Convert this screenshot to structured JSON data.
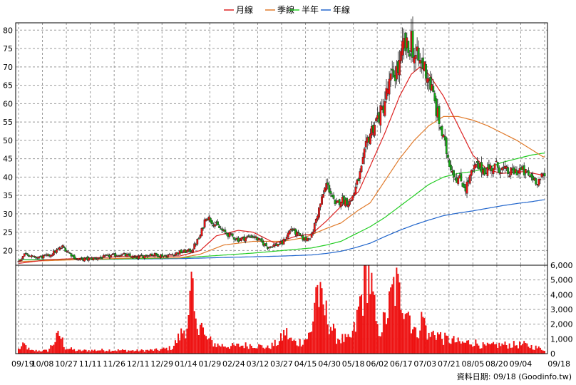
{
  "chart_data": {
    "type": "candlestick",
    "legend": [
      {
        "name": "月線",
        "color": "#dd2222"
      },
      {
        "name": "季線",
        "color": "#e07a2a"
      },
      {
        "name": "半年",
        "color": "#22cc22"
      },
      {
        "name": "年線",
        "color": "#2266cc"
      }
    ],
    "price_axis": {
      "ticks": [
        20,
        25,
        30,
        35,
        40,
        45,
        50,
        55,
        60,
        65,
        70,
        75,
        80
      ],
      "range": [
        16,
        82
      ],
      "labels": [
        "20",
        "25",
        "30",
        "35",
        "40",
        "45",
        "50",
        "55",
        "60",
        "65",
        "70",
        "75",
        "80"
      ]
    },
    "volume_axis": {
      "ticks": [
        0,
        1000,
        2000,
        3000,
        4000,
        5000,
        6000
      ],
      "range": [
        0,
        6000
      ],
      "labels": [
        "0",
        "1,000",
        "2,000",
        "3,000",
        "4,000",
        "5,000",
        "6,000"
      ]
    },
    "x_labels": [
      "09/19",
      "10/08",
      "10/27",
      "11/11",
      "11/26",
      "12/11",
      "12/29",
      "01/14",
      "01/29",
      "02/24",
      "03/12",
      "03/27",
      "04/15",
      "04/30",
      "05/18",
      "06/02",
      "06/17",
      "07/03",
      "07/21",
      "08/05",
      "08/20",
      "09/04",
      "09/18"
    ],
    "colors": {
      "up": "#ee1111",
      "down": "#11aa11",
      "volume": "#ee1111"
    },
    "grid": true,
    "close_anchors": [
      [
        0,
        17
      ],
      [
        5,
        19.5
      ],
      [
        10,
        18
      ],
      [
        20,
        18.5
      ],
      [
        30,
        21
      ],
      [
        40,
        17.5
      ],
      [
        55,
        18
      ],
      [
        70,
        19
      ],
      [
        80,
        18
      ],
      [
        90,
        19
      ],
      [
        100,
        18.5
      ],
      [
        110,
        19.5
      ],
      [
        118,
        20
      ],
      [
        124,
        24
      ],
      [
        128,
        29.5
      ],
      [
        132,
        28
      ],
      [
        140,
        25
      ],
      [
        150,
        23
      ],
      [
        160,
        24
      ],
      [
        170,
        21
      ],
      [
        180,
        22
      ],
      [
        186,
        26
      ],
      [
        190,
        24.5
      ],
      [
        195,
        23
      ],
      [
        200,
        24
      ],
      [
        204,
        30
      ],
      [
        207,
        34
      ],
      [
        210,
        38
      ],
      [
        213,
        36
      ],
      [
        216,
        32
      ],
      [
        220,
        34
      ],
      [
        226,
        33
      ],
      [
        230,
        37
      ],
      [
        234,
        42
      ],
      [
        238,
        50
      ],
      [
        242,
        54
      ],
      [
        245,
        56
      ],
      [
        248,
        58
      ],
      [
        252,
        64
      ],
      [
        256,
        68
      ],
      [
        260,
        70
      ],
      [
        263,
        76
      ],
      [
        266,
        74
      ],
      [
        268,
        78
      ],
      [
        270,
        73
      ],
      [
        274,
        71
      ],
      [
        277,
        70
      ],
      [
        280,
        67
      ],
      [
        284,
        60
      ],
      [
        287,
        55
      ],
      [
        290,
        50
      ],
      [
        294,
        44
      ],
      [
        298,
        40
      ],
      [
        302,
        39
      ],
      [
        305,
        37
      ],
      [
        308,
        40
      ],
      [
        312,
        43
      ],
      [
        318,
        42
      ],
      [
        326,
        43
      ],
      [
        335,
        41
      ],
      [
        342,
        42
      ],
      [
        350,
        40
      ],
      [
        354,
        39
      ],
      [
        358,
        40
      ]
    ],
    "volume_anchors": [
      [
        0,
        300
      ],
      [
        4,
        600
      ],
      [
        8,
        200
      ],
      [
        20,
        200
      ],
      [
        28,
        1300
      ],
      [
        32,
        400
      ],
      [
        40,
        200
      ],
      [
        60,
        250
      ],
      [
        80,
        200
      ],
      [
        95,
        250
      ],
      [
        105,
        400
      ],
      [
        112,
        1500
      ],
      [
        116,
        2200
      ],
      [
        118,
        4400
      ],
      [
        121,
        1800
      ],
      [
        124,
        2500
      ],
      [
        127,
        1100
      ],
      [
        135,
        600
      ],
      [
        145,
        500
      ],
      [
        160,
        600
      ],
      [
        170,
        400
      ],
      [
        178,
        800
      ],
      [
        182,
        1500
      ],
      [
        186,
        900
      ],
      [
        190,
        700
      ],
      [
        196,
        1000
      ],
      [
        200,
        1400
      ],
      [
        203,
        4800
      ],
      [
        205,
        3800
      ],
      [
        207,
        3200
      ],
      [
        211,
        2500
      ],
      [
        216,
        1200
      ],
      [
        220,
        1000
      ],
      [
        226,
        900
      ],
      [
        230,
        1800
      ],
      [
        233,
        3500
      ],
      [
        236,
        4400
      ],
      [
        238,
        6000
      ],
      [
        240,
        5000
      ],
      [
        242,
        3500
      ],
      [
        245,
        1500
      ],
      [
        250,
        2200
      ],
      [
        253,
        3200
      ],
      [
        256,
        4400
      ],
      [
        258,
        4500
      ],
      [
        260,
        3900
      ],
      [
        262,
        4000
      ],
      [
        264,
        3500
      ],
      [
        267,
        2600
      ],
      [
        271,
        1300
      ],
      [
        276,
        2500
      ],
      [
        280,
        1100
      ],
      [
        284,
        1500
      ],
      [
        290,
        1000
      ],
      [
        296,
        900
      ],
      [
        302,
        700
      ],
      [
        310,
        800
      ],
      [
        318,
        500
      ],
      [
        330,
        600
      ],
      [
        345,
        600
      ],
      [
        358,
        300
      ]
    ],
    "ma_20_anchors": [
      [
        0,
        16.5
      ],
      [
        20,
        17.5
      ],
      [
        50,
        18
      ],
      [
        80,
        18.5
      ],
      [
        110,
        18.5
      ],
      [
        124,
        20
      ],
      [
        135,
        24
      ],
      [
        150,
        25.5
      ],
      [
        160,
        25
      ],
      [
        175,
        22
      ],
      [
        190,
        24
      ],
      [
        200,
        24.5
      ],
      [
        210,
        28
      ],
      [
        220,
        32
      ],
      [
        232,
        36
      ],
      [
        240,
        43
      ],
      [
        250,
        52
      ],
      [
        260,
        62
      ],
      [
        268,
        68
      ],
      [
        274,
        70
      ],
      [
        280,
        68
      ],
      [
        290,
        62
      ],
      [
        300,
        54
      ],
      [
        310,
        46
      ],
      [
        320,
        42
      ],
      [
        330,
        41
      ],
      [
        345,
        41.5
      ],
      [
        358,
        40.5
      ]
    ],
    "ma_60_anchors": [
      [
        0,
        17
      ],
      [
        40,
        17.5
      ],
      [
        80,
        18
      ],
      [
        110,
        18
      ],
      [
        124,
        19
      ],
      [
        140,
        21.5
      ],
      [
        160,
        22.5
      ],
      [
        180,
        22.5
      ],
      [
        195,
        23.5
      ],
      [
        210,
        26
      ],
      [
        220,
        27.5
      ],
      [
        232,
        31
      ],
      [
        240,
        33
      ],
      [
        250,
        39
      ],
      [
        260,
        45
      ],
      [
        270,
        50
      ],
      [
        280,
        54
      ],
      [
        290,
        56.5
      ],
      [
        300,
        56.5
      ],
      [
        310,
        55.5
      ],
      [
        320,
        54
      ],
      [
        330,
        52
      ],
      [
        340,
        50
      ],
      [
        350,
        47.5
      ],
      [
        358,
        45.5
      ]
    ],
    "ma_120_anchors": [
      [
        0,
        17.5
      ],
      [
        40,
        17.5
      ],
      [
        80,
        17.8
      ],
      [
        110,
        18
      ],
      [
        130,
        18.5
      ],
      [
        160,
        19.3
      ],
      [
        180,
        20
      ],
      [
        200,
        20.7
      ],
      [
        210,
        21.5
      ],
      [
        220,
        22.5
      ],
      [
        230,
        24.5
      ],
      [
        240,
        26.5
      ],
      [
        250,
        29
      ],
      [
        260,
        32
      ],
      [
        270,
        35
      ],
      [
        280,
        38
      ],
      [
        290,
        40
      ],
      [
        300,
        41
      ],
      [
        310,
        41.5
      ],
      [
        320,
        42.5
      ],
      [
        330,
        44
      ],
      [
        340,
        45
      ],
      [
        350,
        46
      ],
      [
        358,
        46.5
      ]
    ],
    "ma_240_anchors": [
      [
        0,
        17.5
      ],
      [
        40,
        17.5
      ],
      [
        80,
        17.7
      ],
      [
        110,
        17.8
      ],
      [
        130,
        18
      ],
      [
        160,
        18.3
      ],
      [
        180,
        18.5
      ],
      [
        200,
        18.8
      ],
      [
        210,
        19.2
      ],
      [
        220,
        19.8
      ],
      [
        230,
        20.8
      ],
      [
        240,
        22
      ],
      [
        250,
        23.8
      ],
      [
        260,
        25.5
      ],
      [
        270,
        27
      ],
      [
        280,
        28.3
      ],
      [
        290,
        29.5
      ],
      [
        300,
        30.2
      ],
      [
        310,
        30.8
      ],
      [
        320,
        31.5
      ],
      [
        330,
        32.2
      ],
      [
        340,
        32.8
      ],
      [
        350,
        33.3
      ],
      [
        358,
        33.8
      ]
    ],
    "n_bars": 360
  },
  "footer": "資料日期: 09/18 (Goodinfo.tw)"
}
